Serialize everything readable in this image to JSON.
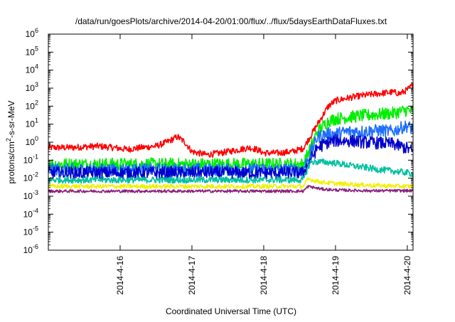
{
  "chart_data": {
    "type": "line",
    "title": "/data/run/goesPlots/archive/2014-04-20/01:00/flux/../flux/5daysEarthDataFluxes.txt",
    "xlabel": "Coordinated Universal Time (UTC)",
    "ylabel": "protons/cm2-s-sr-MeV",
    "ylabel_parts": {
      "before": "protons/cm",
      "sup": "2",
      "after": "-s-sr-MeV"
    },
    "x_unit": "day",
    "x_ticks": [
      {
        "value": 16,
        "label": "2014-4-16"
      },
      {
        "value": 17,
        "label": "2014-4-17"
      },
      {
        "value": 18,
        "label": "2014-4-18"
      },
      {
        "value": 19,
        "label": "2014-4-19"
      },
      {
        "value": 20,
        "label": "2014-4-20"
      }
    ],
    "xlim": [
      15.0,
      20.08
    ],
    "y_scale": "log",
    "ylim": [
      1e-06,
      1000000.0
    ],
    "y_ticks": [
      {
        "value": 1e-06,
        "base": "10",
        "exp": "-6"
      },
      {
        "value": 1e-05,
        "base": "10",
        "exp": "-5"
      },
      {
        "value": 0.0001,
        "base": "10",
        "exp": "-4"
      },
      {
        "value": 0.001,
        "base": "10",
        "exp": "-3"
      },
      {
        "value": 0.01,
        "base": "10",
        "exp": "-2"
      },
      {
        "value": 0.1,
        "base": "10",
        "exp": "-1"
      },
      {
        "value": 1,
        "base": "10",
        "exp": "0"
      },
      {
        "value": 10,
        "base": "10",
        "exp": "1"
      },
      {
        "value": 100,
        "base": "10",
        "exp": "2"
      },
      {
        "value": 1000,
        "base": "10",
        "exp": "3"
      },
      {
        "value": 10000,
        "base": "10",
        "exp": "4"
      },
      {
        "value": 100000,
        "base": "10",
        "exp": "5"
      },
      {
        "value": 1000000,
        "base": "10",
        "exp": "6"
      }
    ],
    "grid": false,
    "legend": "none",
    "series": [
      {
        "color": "#ff0000",
        "noise": 0.18,
        "x": [
          15.0,
          15.3,
          15.5,
          15.7,
          15.9,
          16.1,
          16.3,
          16.5,
          16.65,
          16.8,
          16.9,
          17.0,
          17.2,
          17.4,
          17.6,
          17.8,
          17.9,
          18.0,
          18.2,
          18.4,
          18.55,
          18.75,
          18.9,
          19.0,
          19.2,
          19.4,
          19.6,
          19.8,
          19.9,
          20.0,
          20.08
        ],
        "y": [
          0.5,
          0.5,
          0.55,
          0.6,
          0.5,
          0.4,
          0.5,
          0.6,
          1.0,
          2.0,
          1.0,
          0.3,
          0.2,
          0.25,
          0.35,
          0.5,
          0.4,
          0.25,
          0.25,
          0.3,
          0.45,
          10,
          100,
          200,
          300,
          400,
          500,
          600,
          500,
          800,
          1500
        ]
      },
      {
        "color": "#00ee00",
        "noise": 0.35,
        "x": [
          15.0,
          16.0,
          17.0,
          18.0,
          18.55,
          18.75,
          18.9,
          19.0,
          19.2,
          19.4,
          19.6,
          19.8,
          19.9,
          20.0,
          20.08
        ],
        "y": [
          0.06,
          0.06,
          0.06,
          0.06,
          0.06,
          4,
          15,
          20,
          25,
          30,
          35,
          40,
          50,
          60,
          50
        ]
      },
      {
        "color": "#1e6eff",
        "noise": 0.35,
        "x": [
          15.0,
          16.0,
          17.0,
          18.0,
          18.55,
          18.75,
          18.9,
          19.0,
          19.2,
          19.4,
          19.6,
          19.8,
          19.9,
          20.0,
          20.08
        ],
        "y": [
          0.03,
          0.03,
          0.03,
          0.03,
          0.03,
          2,
          3,
          3,
          4,
          4,
          4.5,
          4,
          6,
          8,
          5
        ]
      },
      {
        "color": "#0000cc",
        "noise": 0.35,
        "x": [
          15.0,
          16.0,
          17.0,
          18.0,
          18.55,
          18.75,
          18.9,
          19.0,
          19.2,
          19.4,
          19.6,
          19.8,
          19.9,
          20.0,
          20.08
        ],
        "y": [
          0.02,
          0.02,
          0.02,
          0.02,
          0.02,
          0.5,
          1.0,
          1.2,
          1.2,
          1.0,
          0.9,
          0.8,
          0.6,
          0.45,
          0.3
        ]
      },
      {
        "color": "#00c0a0",
        "noise": 0.18,
        "x": [
          15.0,
          16.0,
          17.0,
          18.0,
          18.55,
          18.65,
          18.8,
          19.0,
          19.2,
          19.4,
          19.6,
          19.8,
          20.0,
          20.08
        ],
        "y": [
          0.008,
          0.008,
          0.008,
          0.008,
          0.008,
          0.08,
          0.08,
          0.07,
          0.05,
          0.04,
          0.03,
          0.025,
          0.02,
          0.017
        ]
      },
      {
        "color": "#f0f000",
        "noise": 0.12,
        "x": [
          15.0,
          16.0,
          17.0,
          18.0,
          18.55,
          18.62,
          18.8,
          19.0,
          19.5,
          20.0,
          20.08
        ],
        "y": [
          0.0035,
          0.0035,
          0.0035,
          0.0035,
          0.0035,
          0.009,
          0.006,
          0.005,
          0.004,
          0.0035,
          0.0035
        ]
      },
      {
        "color": "#8b2080",
        "noise": 0.08,
        "x": [
          15.0,
          16.0,
          17.0,
          18.0,
          18.55,
          18.62,
          18.8,
          19.0,
          19.5,
          20.0,
          20.08
        ],
        "y": [
          0.0019,
          0.0019,
          0.0019,
          0.0019,
          0.0019,
          0.0035,
          0.0025,
          0.0022,
          0.002,
          0.002,
          0.002
        ]
      }
    ]
  }
}
